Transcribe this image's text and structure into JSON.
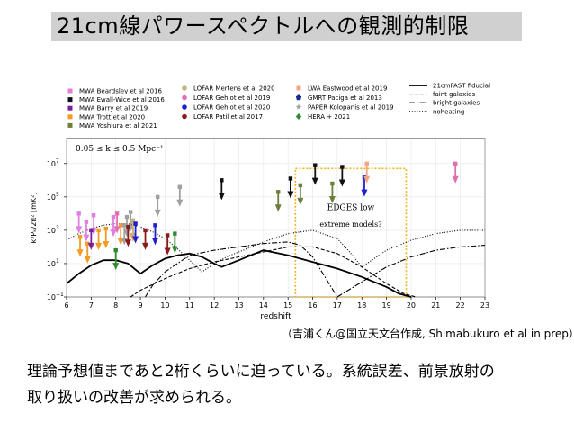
{
  "slide": {
    "title": "21cm線パワースペクトルへの観測的制限",
    "credit": "（吉浦くん@国立天文台作成, Shimabukuro et al in prep）",
    "body_line1": "理論予想値まであと2桁くらいに迫っている。系統誤差、前景放射の",
    "body_line2": "取り扱いの改善が求められる。"
  },
  "chart_data": {
    "type": "scatter",
    "xlabel": "redshift",
    "ylabel": "k³Pₖ/2π² [mK²]",
    "xlim": [
      6,
      23
    ],
    "ylim_log10": [
      -1,
      8.5
    ],
    "log_y": true,
    "x_ticks": [
      6,
      7,
      8,
      9,
      10,
      11,
      12,
      13,
      14,
      15,
      16,
      17,
      18,
      19,
      20,
      21,
      22,
      23
    ],
    "y_ticks": [
      {
        "label": "10",
        "sup": "−1",
        "exp": -1
      },
      {
        "label": "10",
        "sup": "1",
        "exp": 1
      },
      {
        "label": "10",
        "sup": "3",
        "exp": 3
      },
      {
        "label": "10",
        "sup": "5",
        "exp": 5
      },
      {
        "label": "10",
        "sup": "7",
        "exp": 7
      }
    ],
    "annotation_k": "0.05 ≤ k ≤ 0.5 Mpc⁻¹",
    "edges_box": {
      "x": [
        15.3,
        19.8
      ],
      "ylog": [
        -1,
        6.7
      ],
      "line1": "EDGES low",
      "line2": "extreme models?",
      "color": "#f2b21c"
    },
    "legend_col1": [
      {
        "name": "MWA Beardsley et al 2016",
        "color": "#e07fe0",
        "marker": "square"
      },
      {
        "name": "MWA Ewall-Wice et al 2016",
        "color": "#111111",
        "marker": "square"
      },
      {
        "name": "MWA Barry et al 2019",
        "color": "#7b1fa2",
        "marker": "square"
      },
      {
        "name": "MWA Trott et al 2020",
        "color": "#f59a23",
        "marker": "square"
      },
      {
        "name": "MWA Yoshiura et al 2021",
        "color": "#6b7f3a",
        "marker": "square"
      }
    ],
    "legend_col2": [
      {
        "name": "LOFAR Mertens et al 2020",
        "color": "#c4b37c",
        "marker": "circle"
      },
      {
        "name": "LOFAR Gehlot et al 2019",
        "color": "#e06fb0",
        "marker": "circle"
      },
      {
        "name": "LOFAR Gehlot et al 2020",
        "color": "#1f1fd0",
        "marker": "circle"
      },
      {
        "name": "LOFAR Patil et al 2017",
        "color": "#8b1a1a",
        "marker": "circle"
      }
    ],
    "legend_col3": [
      {
        "name": "LWA Eastwood et al 2019",
        "color": "#f4a582",
        "marker": "square"
      },
      {
        "name": "GMRT Paciga et al 2013",
        "color": "#1a2a8c",
        "marker": "pentagon"
      },
      {
        "name": "PAPER Kolopanis et al 2019",
        "color": "#a0a0a0",
        "marker": "star"
      },
      {
        "name": "HERA + 2021",
        "color": "#2e8b2e",
        "marker": "diamond"
      }
    ],
    "legend_col4": [
      {
        "name": "21cmFAST fiducial",
        "style": "solid"
      },
      {
        "name": "faint galaxies",
        "style": "dashed"
      },
      {
        "name": "bright galaxies",
        "style": "dashdot"
      },
      {
        "name": "noheating",
        "style": "dotted"
      }
    ],
    "limits": [
      {
        "z": 6.5,
        "y": 4.0,
        "color": "#e07fe0"
      },
      {
        "z": 6.8,
        "y": 3.5,
        "color": "#e07fe0"
      },
      {
        "z": 7.1,
        "y": 3.9,
        "color": "#e07fe0"
      },
      {
        "z": 7.9,
        "y": 3.8,
        "color": "#e07fe0"
      },
      {
        "z": 6.55,
        "y": 2.6,
        "color": "#f59a23"
      },
      {
        "z": 6.85,
        "y": 2.2,
        "color": "#f59a23"
      },
      {
        "z": 7.3,
        "y": 3.0,
        "color": "#f59a23"
      },
      {
        "z": 7.6,
        "y": 3.1,
        "color": "#f59a23"
      },
      {
        "z": 8.2,
        "y": 3.3,
        "color": "#f59a23"
      },
      {
        "z": 8.7,
        "y": 3.5,
        "color": "#f59a23"
      },
      {
        "z": 7.0,
        "y": 3.0,
        "color": "#7b1fa2"
      },
      {
        "z": 8.35,
        "y": 3.3,
        "color": "#a0a0a0"
      },
      {
        "z": 8.45,
        "y": 3.8,
        "color": "#a0a0a0"
      },
      {
        "z": 8.6,
        "y": 4.1,
        "color": "#a0a0a0"
      },
      {
        "z": 8.7,
        "y": 3.6,
        "color": "#c4b37c"
      },
      {
        "z": 9.7,
        "y": 5.0,
        "color": "#a0a0a0"
      },
      {
        "z": 10.6,
        "y": 5.6,
        "color": "#a0a0a0"
      },
      {
        "z": 8.05,
        "y": 4.0,
        "color": "#e06fb0"
      },
      {
        "z": 8.8,
        "y": 3.4,
        "color": "#1f1fd0"
      },
      {
        "z": 8.5,
        "y": 3.2,
        "color": "#8b1a1a"
      },
      {
        "z": 9.2,
        "y": 3.0,
        "color": "#8b1a1a"
      },
      {
        "z": 10.1,
        "y": 2.7,
        "color": "#8b1a1a"
      },
      {
        "z": 9.6,
        "y": 3.3,
        "color": "#1f1fd0"
      },
      {
        "z": 8.0,
        "y": 1.8,
        "color": "#2e8b2e"
      },
      {
        "z": 10.4,
        "y": 2.8,
        "color": "#2e8b2e"
      },
      {
        "z": 12.3,
        "y": 6.0,
        "color": "#111111"
      },
      {
        "z": 14.6,
        "y": 5.3,
        "color": "#6b7f3a"
      },
      {
        "z": 15.5,
        "y": 5.7,
        "color": "#6b7f3a"
      },
      {
        "z": 15.1,
        "y": 6.1,
        "color": "#111111"
      },
      {
        "z": 16.1,
        "y": 6.9,
        "color": "#111111"
      },
      {
        "z": 16.8,
        "y": 5.8,
        "color": "#6b7f3a"
      },
      {
        "z": 17.2,
        "y": 6.8,
        "color": "#111111"
      },
      {
        "z": 18.1,
        "y": 6.2,
        "color": "#1f1fd0"
      },
      {
        "z": 18.2,
        "y": 7.0,
        "color": "#f4a582"
      },
      {
        "z": 21.8,
        "y": 7.0,
        "color": "#e06fb0"
      }
    ],
    "series": [
      {
        "name": "21cmFAST fiducial",
        "style": "solid",
        "x": [
          6.0,
          6.5,
          7.0,
          7.5,
          8.0,
          8.5,
          9.0,
          9.5,
          10.0,
          10.5,
          11.0,
          11.5,
          12.0,
          12.3,
          13.0,
          14.0,
          15.0,
          16.0,
          17.0,
          18.0,
          19.0,
          19.5,
          20.0
        ],
        "y": [
          -0.2,
          0.4,
          0.9,
          1.2,
          1.2,
          1.0,
          0.4,
          0.9,
          1.3,
          1.5,
          1.6,
          1.4,
          1.0,
          0.8,
          1.2,
          1.8,
          1.5,
          1.1,
          0.7,
          0.2,
          -0.4,
          -0.8,
          -1.0
        ]
      },
      {
        "name": "faint galaxies",
        "style": "dashed",
        "x": [
          8.6,
          9.0,
          10.0,
          11.0,
          12.0,
          13.0,
          14.0,
          15.0,
          16.0,
          17.0,
          18.0,
          19.0,
          19.7,
          20.2
        ],
        "y": [
          -1.0,
          -0.6,
          0.1,
          0.7,
          1.1,
          1.4,
          1.7,
          2.0,
          2.0,
          1.6,
          0.8,
          -0.2,
          -0.8,
          -1.0
        ]
      },
      {
        "name": "bright galaxies",
        "style": "dashdot",
        "x": [
          9.2,
          9.5,
          10.0,
          11.0,
          12.0,
          13.0,
          14.0,
          15.0,
          15.5,
          16.0,
          17.0,
          18.0,
          19.0,
          20.0,
          21.0,
          22.0,
          23.0
        ],
        "y": [
          -1.0,
          -0.3,
          0.5,
          1.5,
          1.8,
          2.0,
          2.2,
          2.3,
          2.1,
          1.4,
          -1.0,
          -0.1,
          0.8,
          1.4,
          1.8,
          2.0,
          2.1
        ]
      },
      {
        "name": "noheating",
        "style": "dotted",
        "x": [
          6.0,
          6.5,
          7.0,
          7.5,
          8.0,
          8.5,
          9.0,
          9.5,
          10.0,
          10.5,
          11.0,
          11.5,
          12.0,
          12.5,
          13.0,
          14.0,
          15.0,
          16.0,
          17.0,
          17.5,
          18.0,
          18.5,
          19.0,
          20.0,
          21.0,
          22.0,
          23.0
        ],
        "y": [
          2.4,
          2.8,
          3.1,
          3.3,
          3.4,
          3.4,
          3.2,
          2.9,
          2.5,
          1.9,
          1.2,
          0.5,
          1.0,
          1.4,
          1.7,
          2.3,
          2.8,
          3.0,
          2.5,
          1.7,
          0.8,
          1.3,
          1.8,
          2.4,
          2.8,
          3.0,
          3.0
        ]
      }
    ]
  }
}
